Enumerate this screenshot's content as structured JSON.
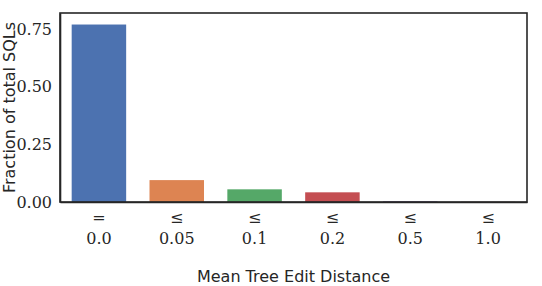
{
  "chart_data": {
    "type": "bar",
    "x_label": "Mean Tree Edit Distance",
    "y_label": "Fraction of total SQLs",
    "categories": [
      "=\n0.0",
      "≤\n0.05",
      "≤\n0.1",
      "≤\n0.2",
      "≤\n0.5",
      "≤\n1.0"
    ],
    "values": [
      0.77,
      0.095,
      0.055,
      0.042,
      0.003,
      0.001
    ],
    "colors": [
      "#4c72b0",
      "#dd8452",
      "#55a868",
      "#c44e52",
      "#8172b3",
      "#937860"
    ],
    "ylim": [
      0,
      0.82
    ],
    "yticks": [
      {
        "value": 0,
        "label": "0.00"
      },
      {
        "value": 0.25,
        "label": "0.25"
      },
      {
        "value": 0.5,
        "label": "0.50"
      },
      {
        "value": 0.75,
        "label": "0.75"
      }
    ],
    "grid": false
  }
}
